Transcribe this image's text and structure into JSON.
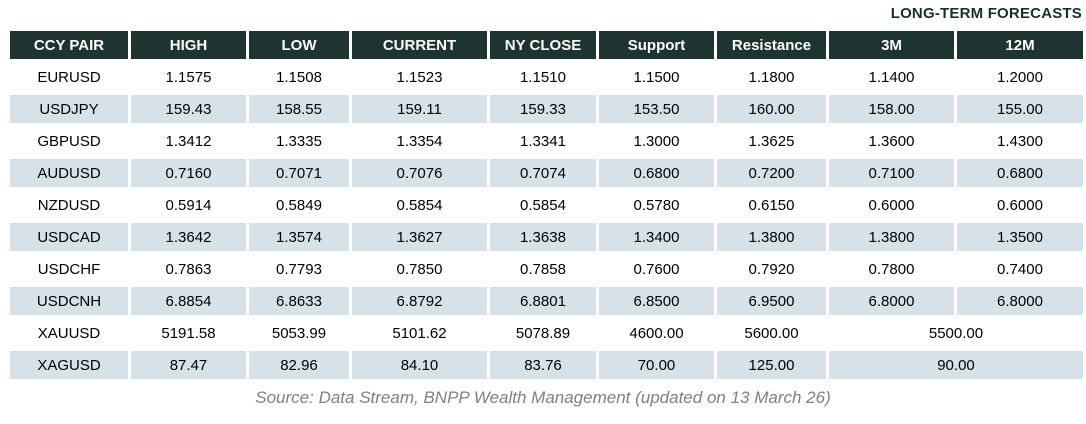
{
  "header": {
    "long_term_label": "LONG-TERM FORECASTS"
  },
  "table": {
    "columns": [
      "CCY PAIR",
      "HIGH",
      "LOW",
      "CURRENT",
      "NY CLOSE",
      "Support",
      "Resistance",
      "3M",
      "12M"
    ],
    "rows": [
      {
        "pair": "EURUSD",
        "values": [
          "1.1575",
          "1.1508",
          "1.1523",
          "1.1510",
          "1.1500",
          "1.1800",
          "1.1400",
          "1.2000"
        ]
      },
      {
        "pair": "USDJPY",
        "values": [
          "159.43",
          "158.55",
          "159.11",
          "159.33",
          "153.50",
          "160.00",
          "158.00",
          "155.00"
        ]
      },
      {
        "pair": "GBPUSD",
        "values": [
          "1.3412",
          "1.3335",
          "1.3354",
          "1.3341",
          "1.3000",
          "1.3625",
          "1.3600",
          "1.4300"
        ]
      },
      {
        "pair": "AUDUSD",
        "values": [
          "0.7160",
          "0.7071",
          "0.7076",
          "0.7074",
          "0.6800",
          "0.7200",
          "0.7100",
          "0.6800"
        ]
      },
      {
        "pair": "NZDUSD",
        "values": [
          "0.5914",
          "0.5849",
          "0.5854",
          "0.5854",
          "0.5780",
          "0.6150",
          "0.6000",
          "0.6000"
        ]
      },
      {
        "pair": "USDCAD",
        "values": [
          "1.3642",
          "1.3574",
          "1.3627",
          "1.3638",
          "1.3400",
          "1.3800",
          "1.3800",
          "1.3500"
        ]
      },
      {
        "pair": "USDCHF",
        "values": [
          "0.7863",
          "0.7793",
          "0.7850",
          "0.7858",
          "0.7600",
          "0.7920",
          "0.7800",
          "0.7400"
        ]
      },
      {
        "pair": "USDCNH",
        "values": [
          "6.8854",
          "6.8633",
          "6.8792",
          "6.8801",
          "6.8500",
          "6.9500",
          "6.8000",
          "6.8000"
        ]
      },
      {
        "pair": "XAUUSD",
        "values": [
          "5191.58",
          "5053.99",
          "5101.62",
          "5078.89",
          "4600.00",
          "5600.00"
        ],
        "forecast_merged": "5500.00"
      },
      {
        "pair": "XAGUSD",
        "values": [
          "87.47",
          "82.96",
          "84.10",
          "83.76",
          "70.00",
          "125.00"
        ],
        "forecast_merged": "90.00"
      }
    ]
  },
  "footer": {
    "source": "Source: Data Stream, BNPP Wealth Management (updated on 13 March 26)"
  },
  "colors": {
    "header_bg": "#1e3430",
    "stripe_bg": "#d6e1e8",
    "header_text": "#ffffff",
    "forecast_label_text": "#16302e",
    "source_text": "#808080",
    "data_text": "#000000"
  }
}
